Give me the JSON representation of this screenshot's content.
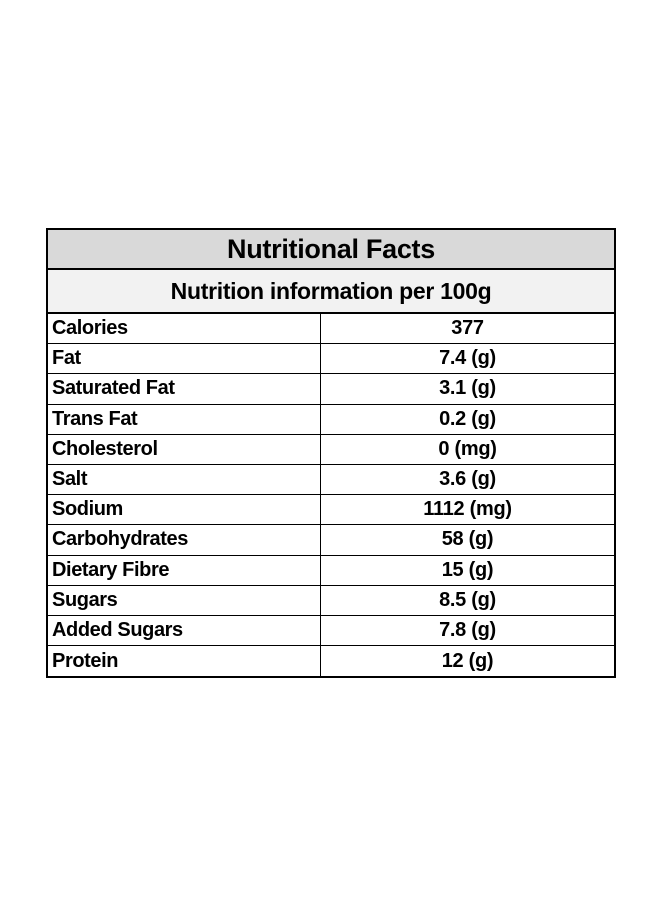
{
  "table": {
    "title": "Nutritional Facts",
    "subtitle": "Nutrition information per 100g",
    "rows": [
      {
        "name": "Calories",
        "value": "377"
      },
      {
        "name": "Fat",
        "value": "7.4 (g)"
      },
      {
        "name": "Saturated Fat",
        "value": "3.1 (g)"
      },
      {
        "name": "Trans Fat",
        "value": "0.2 (g)"
      },
      {
        "name": "Cholesterol",
        "value": "0 (mg)"
      },
      {
        "name": "Salt",
        "value": "3.6 (g)"
      },
      {
        "name": "Sodium",
        "value": "1112 (mg)"
      },
      {
        "name": "Carbohydrates",
        "value": "58 (g)"
      },
      {
        "name": "Dietary Fibre",
        "value": "15 (g)"
      },
      {
        "name": "Sugars",
        "value": "8.5 (g)"
      },
      {
        "name": "Added Sugars",
        "value": "7.8 (g)"
      },
      {
        "name": "Protein",
        "value": "12 (g)"
      }
    ]
  },
  "colors": {
    "title_background": "#d9d9d9",
    "subtitle_background": "#f2f2f2",
    "border": "#000000"
  }
}
